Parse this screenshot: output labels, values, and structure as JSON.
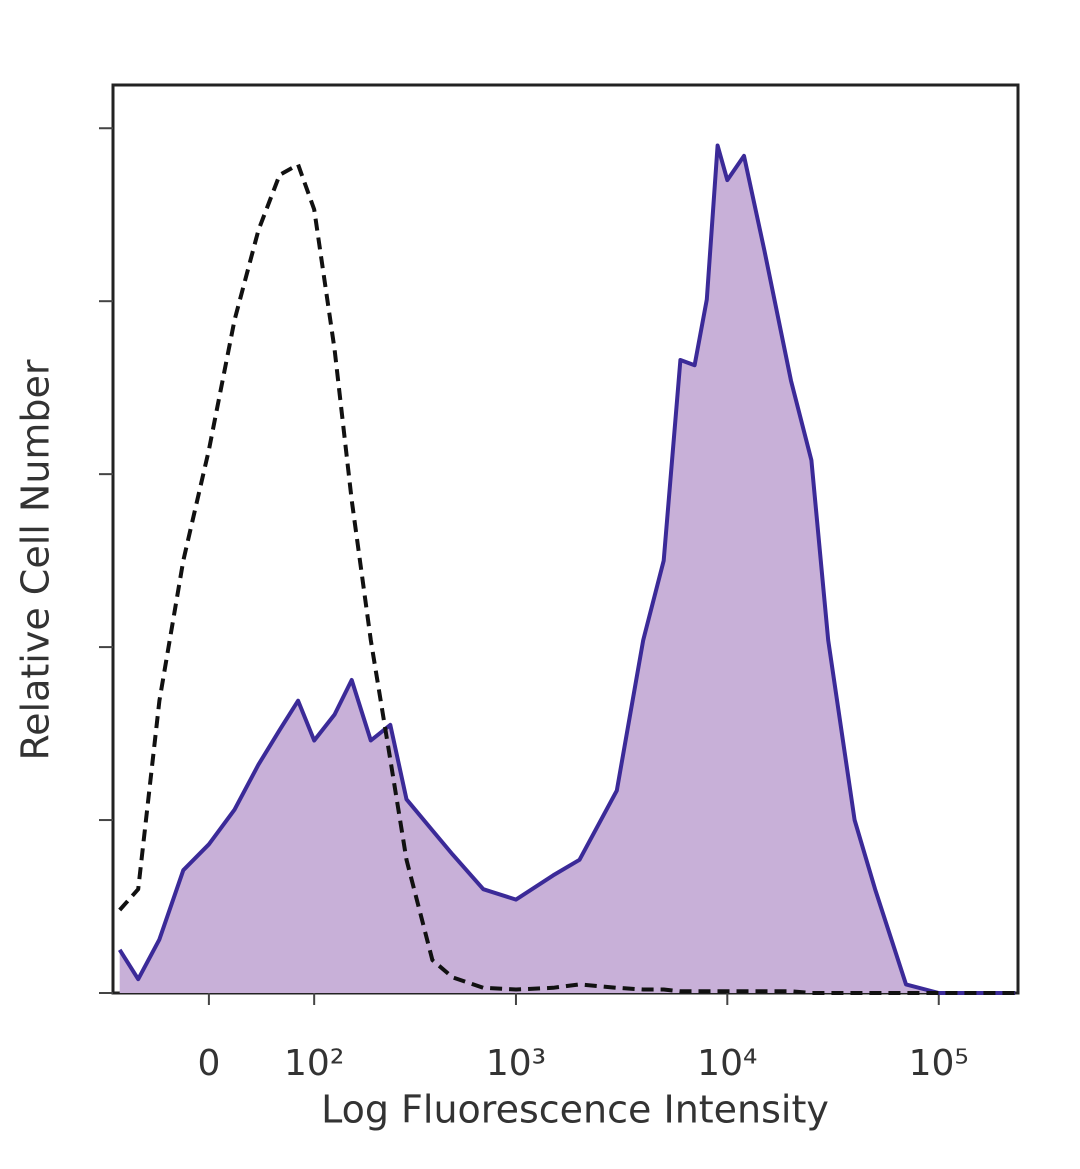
{
  "chart_data": {
    "type": "area",
    "xlabel": "Log Fluorescence Intensity",
    "ylabel": "Relative Cell Number",
    "xscale": "biexponential",
    "xlim": [
      -88,
      237000
    ],
    "xticks": [
      0,
      {
        "value": 100,
        "label": "10²"
      },
      {
        "value": 1000,
        "label": "10³"
      },
      {
        "value": 10000,
        "label": "10⁴"
      },
      {
        "value": 100000,
        "label": "10⁵"
      }
    ],
    "ylim": [
      0,
      5.25
    ],
    "yticks": [
      0,
      1,
      2,
      3,
      4,
      5
    ],
    "x": [
      -80,
      -60,
      -40,
      -20,
      0,
      20,
      40,
      60,
      80,
      100,
      130,
      160,
      200,
      250,
      300,
      400,
      500,
      700,
      1000,
      1500,
      2000,
      3000,
      4000,
      5000,
      6000,
      7000,
      8000,
      9000,
      10000,
      12000,
      15000,
      20000,
      25000,
      30000,
      40000,
      50000,
      70000,
      100000,
      150000,
      230000
    ],
    "series": [
      {
        "color": "#3b2a98",
        "fill": "#c8b0d8",
        "dashed": false,
        "values": [
          0.25,
          0.08,
          0.31,
          0.71,
          0.86,
          1.06,
          1.32,
          1.52,
          1.69,
          1.46,
          1.61,
          1.81,
          1.46,
          1.55,
          1.12,
          0.94,
          0.8,
          0.6,
          0.54,
          0.68,
          0.77,
          1.17,
          2.04,
          2.5,
          3.66,
          3.63,
          4.01,
          4.9,
          4.7,
          4.84,
          4.29,
          3.54,
          3.08,
          2.04,
          1.0,
          0.6,
          0.05,
          0,
          0,
          0
        ]
      },
      {
        "color": "#111111",
        "fill": null,
        "dashed": true,
        "values": [
          0.48,
          0.6,
          1.69,
          2.5,
          3.14,
          3.89,
          4.41,
          4.73,
          4.79,
          4.53,
          3.72,
          2.85,
          2.04,
          1.35,
          0.77,
          0.19,
          0.09,
          0.03,
          0.02,
          0.03,
          0.05,
          0.03,
          0.02,
          0.02,
          0.01,
          0.01,
          0.01,
          0.01,
          0.01,
          0.01,
          0.01,
          0.01,
          0,
          0,
          0,
          0,
          0,
          0,
          0,
          0
        ]
      }
    ]
  }
}
